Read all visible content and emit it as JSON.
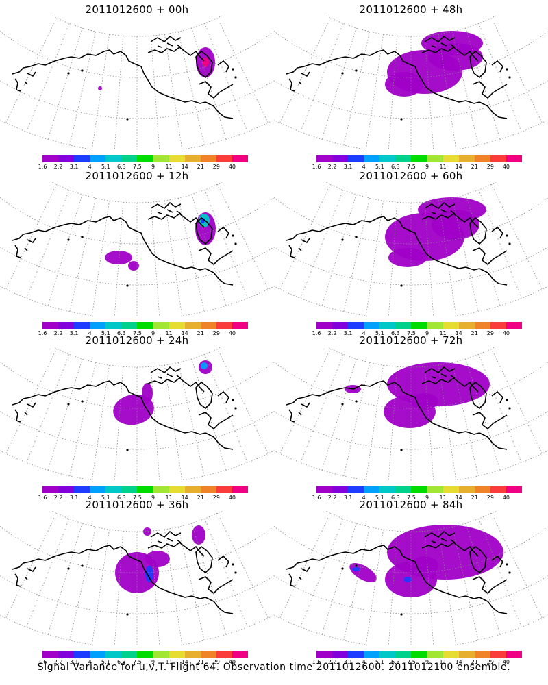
{
  "panels": [
    {
      "title": "2011012600 + 00h",
      "blobs": [
        {
          "cx": 300,
          "cy": 68,
          "rx": 14,
          "ry": 22,
          "level": 0,
          "rot": 0
        },
        {
          "cx": 300,
          "cy": 68,
          "rx": 5,
          "ry": 7,
          "level": 12,
          "rot": 0
        },
        {
          "cx": 146,
          "cy": 106,
          "rx": 3,
          "ry": 3,
          "level": 0,
          "rot": 0
        }
      ]
    },
    {
      "title": "2011012600 + 12h",
      "blobs": [
        {
          "cx": 300,
          "cy": 68,
          "rx": 15,
          "ry": 24,
          "level": 0,
          "rot": 0
        },
        {
          "cx": 298,
          "cy": 56,
          "rx": 8,
          "ry": 10,
          "level": 4,
          "rot": 0
        },
        {
          "cx": 296,
          "cy": 56,
          "rx": 3,
          "ry": 4,
          "level": 2,
          "rot": 0
        },
        {
          "cx": 173,
          "cy": 110,
          "rx": 20,
          "ry": 10,
          "level": 0,
          "rot": 0
        },
        {
          "cx": 195,
          "cy": 122,
          "rx": 8,
          "ry": 7,
          "level": 0,
          "rot": 0
        }
      ]
    },
    {
      "title": "2011012600 + 24h",
      "blobs": [
        {
          "cx": 195,
          "cy": 92,
          "rx": 30,
          "ry": 22,
          "level": 0,
          "rot": -10
        },
        {
          "cx": 215,
          "cy": 68,
          "rx": 8,
          "ry": 15,
          "level": 0,
          "rot": 0
        },
        {
          "cx": 300,
          "cy": 30,
          "rx": 10,
          "ry": 10,
          "level": 0,
          "rot": 0
        },
        {
          "cx": 298,
          "cy": 28,
          "rx": 5,
          "ry": 5,
          "level": 3,
          "rot": 0
        }
      ]
    },
    {
      "title": "2011012600 + 36h",
      "blobs": [
        {
          "cx": 200,
          "cy": 90,
          "rx": 32,
          "ry": 30,
          "level": 0,
          "rot": 0
        },
        {
          "cx": 230,
          "cy": 70,
          "rx": 18,
          "ry": 12,
          "level": 0,
          "rot": 0
        },
        {
          "cx": 218,
          "cy": 92,
          "rx": 6,
          "ry": 12,
          "level": 2,
          "rot": 0
        },
        {
          "cx": 290,
          "cy": 35,
          "rx": 10,
          "ry": 14,
          "level": 0,
          "rot": 0
        },
        {
          "cx": 215,
          "cy": 30,
          "rx": 6,
          "ry": 6,
          "level": 0,
          "rot": 0
        }
      ]
    },
    {
      "title": "2011012600 + 48h",
      "blobs": [
        {
          "cx": 620,
          "cy": 82,
          "rx": 55,
          "ry": 32,
          "level": 0,
          "rot": 0
        },
        {
          "cx": 590,
          "cy": 100,
          "rx": 28,
          "ry": 18,
          "level": 0,
          "rot": 0
        },
        {
          "cx": 665,
          "cy": 60,
          "rx": 40,
          "ry": 20,
          "level": 0,
          "rot": 0
        },
        {
          "cx": 660,
          "cy": 40,
          "rx": 45,
          "ry": 18,
          "level": 0,
          "rot": 0
        }
      ]
    },
    {
      "title": "2011012600 + 60h",
      "blobs": [
        {
          "cx": 620,
          "cy": 80,
          "rx": 58,
          "ry": 35,
          "level": 0,
          "rot": 0
        },
        {
          "cx": 595,
          "cy": 110,
          "rx": 28,
          "ry": 14,
          "level": 0,
          "rot": 0
        },
        {
          "cx": 665,
          "cy": 62,
          "rx": 35,
          "ry": 22,
          "level": 0,
          "rot": 0
        },
        {
          "cx": 660,
          "cy": 40,
          "rx": 50,
          "ry": 18,
          "level": 0,
          "rot": 0
        }
      ]
    },
    {
      "title": "2011012600 + 72h",
      "blobs": [
        {
          "cx": 640,
          "cy": 55,
          "rx": 75,
          "ry": 32,
          "level": 0,
          "rot": 0
        },
        {
          "cx": 598,
          "cy": 95,
          "rx": 38,
          "ry": 24,
          "level": 0,
          "rot": 0
        },
        {
          "cx": 620,
          "cy": 80,
          "rx": 20,
          "ry": 12,
          "level": 0,
          "rot": 0
        },
        {
          "cx": 515,
          "cy": 62,
          "rx": 12,
          "ry": 6,
          "level": 0,
          "rot": 0
        }
      ]
    },
    {
      "title": "2011012600 + 84h",
      "blobs": [
        {
          "cx": 650,
          "cy": 60,
          "rx": 85,
          "ry": 40,
          "level": 0,
          "rot": 0
        },
        {
          "cx": 600,
          "cy": 100,
          "rx": 38,
          "ry": 26,
          "level": 0,
          "rot": 0
        },
        {
          "cx": 595,
          "cy": 100,
          "rx": 6,
          "ry": 4,
          "level": 2,
          "rot": 0
        },
        {
          "cx": 530,
          "cy": 90,
          "rx": 22,
          "ry": 10,
          "level": 0,
          "rot": 30
        },
        {
          "cx": 520,
          "cy": 85,
          "rx": 6,
          "ry": 3,
          "level": 2,
          "rot": 0
        },
        {
          "cx": 620,
          "cy": 80,
          "rx": 20,
          "ry": 14,
          "level": 0,
          "rot": 0
        }
      ]
    }
  ],
  "colorbar": {
    "colors": [
      "#a000c8",
      "#8200dc",
      "#1e3cff",
      "#00a0ff",
      "#00c8c8",
      "#00d28c",
      "#00dc00",
      "#a0e632",
      "#e6dc32",
      "#e6af2d",
      "#f08228",
      "#fa3c3c",
      "#f00082"
    ],
    "labels": [
      "1.6",
      "2.2",
      "3.1",
      "4",
      "5.1",
      "6.3",
      "7.5",
      "9",
      "11",
      "14",
      "21",
      "29",
      "40"
    ]
  },
  "caption": "Signal Variance for u,v,T. Flight 64. Observation time 2011012600. 2011012100 ensemble."
}
